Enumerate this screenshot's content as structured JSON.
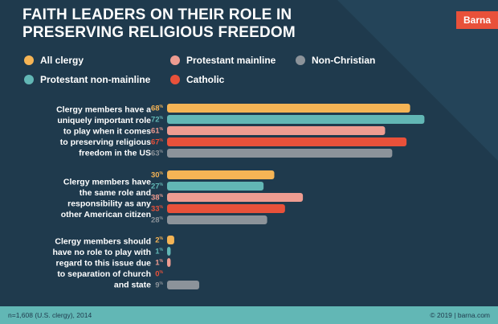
{
  "title_line1": "FAITH LEADERS ON THEIR ROLE IN",
  "title_line2": "PRESERVING RELIGIOUS FREEDOM",
  "logo": "Barna",
  "footer": {
    "source": "n=1,608 (U.S. clergy), 2014",
    "copyright": "© 2019 | barna.com"
  },
  "colors": {
    "background": "#1f3a4d",
    "all_clergy": "#f5b455",
    "protestant_non_mainline": "#62b7b5",
    "protestant_mainline": "#ee9c91",
    "catholic": "#e8513a",
    "non_christian": "#8c939a",
    "footer": "#62b7b5",
    "logo": "#e8513a"
  },
  "chart_data": {
    "type": "bar",
    "orientation": "horizontal",
    "title": "FAITH LEADERS ON THEIR ROLE IN PRESERVING RELIGIOUS FREEDOM",
    "value_suffix": "%",
    "legend_placement": "top",
    "grid": false,
    "xlim": [
      0,
      100
    ],
    "categories": [
      [
        "Clergy members have a",
        "uniquely important role",
        "to play when it comes",
        "to preserving religious",
        "freedom in the US"
      ],
      [
        "Clergy members have",
        "the same role and",
        "responsibility as any",
        "other American citizen"
      ],
      [
        "Clergy members should",
        "have no role to play with",
        "regard to this issue due",
        "to separation of church",
        "and state"
      ]
    ],
    "series": [
      {
        "name": "All clergy",
        "color": "#f5b455",
        "values": [
          68,
          30,
          2
        ]
      },
      {
        "name": "Protestant non-mainline",
        "color": "#62b7b5",
        "values": [
          72,
          27,
          1
        ]
      },
      {
        "name": "Protestant mainline",
        "color": "#ee9c91",
        "values": [
          61,
          38,
          1
        ]
      },
      {
        "name": "Catholic",
        "color": "#e8513a",
        "values": [
          67,
          33,
          0
        ]
      },
      {
        "name": "Non-Christian",
        "color": "#8c939a",
        "values": [
          63,
          28,
          9
        ]
      }
    ]
  }
}
